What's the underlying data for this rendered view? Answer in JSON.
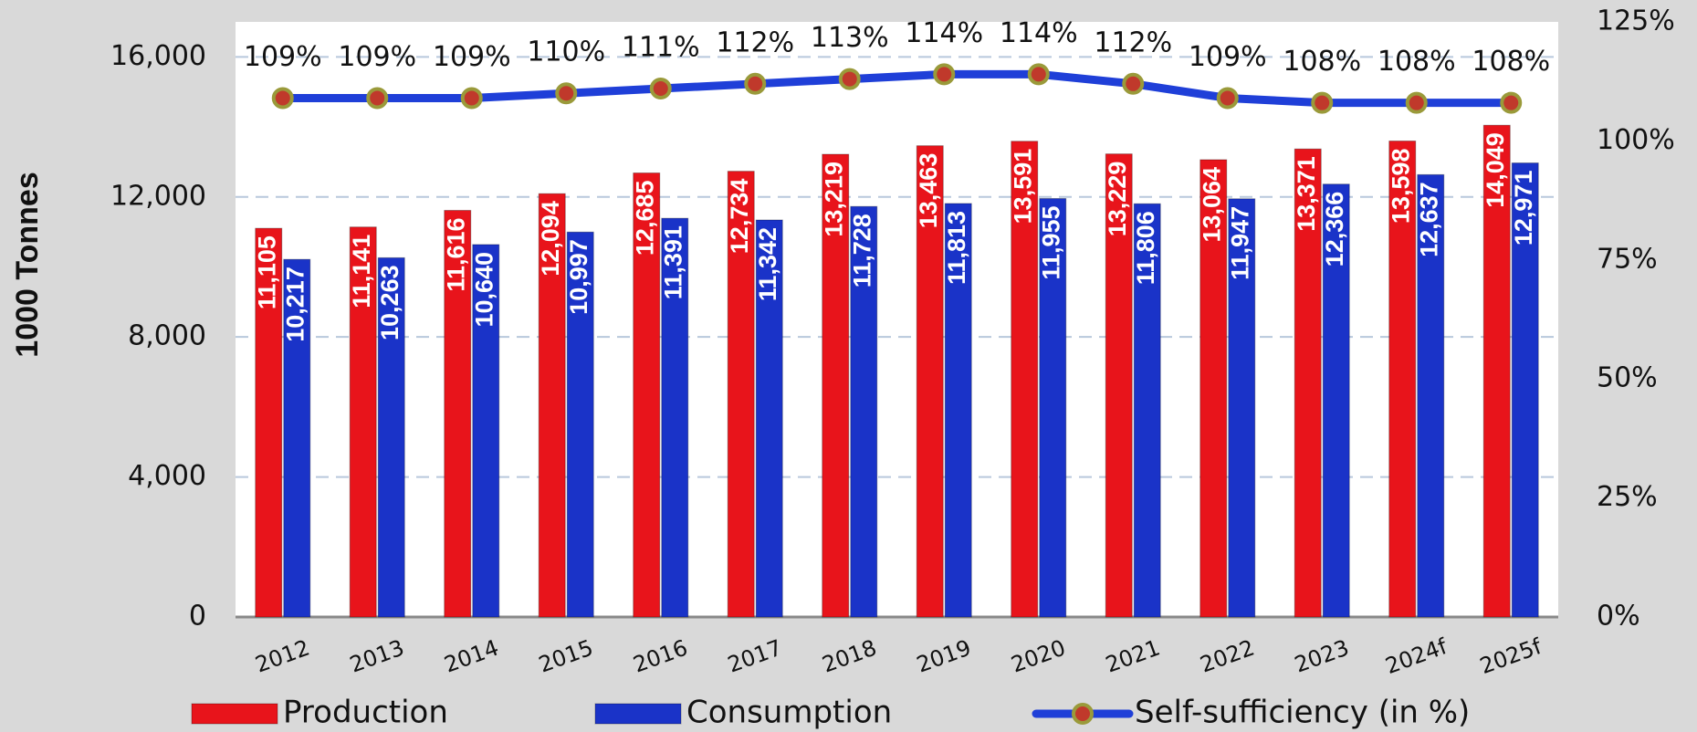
{
  "chart_data": {
    "type": "bar",
    "y_label": "1000 Tonnes",
    "categories": [
      "2012",
      "2013",
      "2014",
      "2015",
      "2016",
      "2017",
      "2018",
      "2019",
      "2020",
      "2021",
      "2022",
      "2023",
      "2024f",
      "2025f"
    ],
    "series": [
      {
        "name": "Production",
        "type": "bar",
        "color": "#e8141b",
        "values": [
          11105,
          11141,
          11616,
          12094,
          12685,
          12734,
          13219,
          13463,
          13591,
          13229,
          13064,
          13371,
          13598,
          14049
        ],
        "value_labels": [
          "11,105",
          "11,141",
          "11,616",
          "12,094",
          "12,685",
          "12,734",
          "13,219",
          "13,463",
          "13,591",
          "13,229",
          "13,064",
          "13,371",
          "13,598",
          "14,049"
        ]
      },
      {
        "name": "Consumption",
        "type": "bar",
        "color": "#1a33c8",
        "values": [
          10217,
          10263,
          10640,
          10997,
          11391,
          11342,
          11728,
          11813,
          11955,
          11806,
          11947,
          12366,
          12637,
          12971
        ],
        "value_labels": [
          "10,217",
          "10,263",
          "10,640",
          "10,997",
          "11,391",
          "11,342",
          "11,728",
          "11,813",
          "11,955",
          "11,806",
          "11,947",
          "12,366",
          "12,637",
          "12,971"
        ]
      },
      {
        "name": "Self-sufficiency (in %)",
        "type": "line",
        "axis": "y2",
        "color": "#1f3fd8",
        "values": [
          109,
          109,
          109,
          110,
          111,
          112,
          113,
          114,
          114,
          112,
          109,
          108,
          108,
          108
        ],
        "value_labels": [
          "109%",
          "109%",
          "109%",
          "110%",
          "111%",
          "112%",
          "113%",
          "114%",
          "114%",
          "112%",
          "109%",
          "108%",
          "108%",
          "108%"
        ]
      }
    ],
    "ylim": [
      0,
      17000
    ],
    "yticks": [
      0,
      {
        "value": 4000,
        "label": "4,000"
      },
      {
        "value": 8000,
        "label": "8,000"
      },
      {
        "value": 12000,
        "label": "12,000"
      },
      {
        "value": 16000,
        "label": "16,000"
      }
    ],
    "y2lim": [
      0,
      125
    ],
    "y2ticks": [
      {
        "value": 0,
        "label": "0%"
      },
      {
        "value": 25,
        "label": "25%"
      },
      {
        "value": 50,
        "label": "50%"
      },
      {
        "value": 75,
        "label": "75%"
      },
      {
        "value": 100,
        "label": "100%"
      },
      {
        "value": 125,
        "label": "125%"
      }
    ],
    "grid": true
  }
}
